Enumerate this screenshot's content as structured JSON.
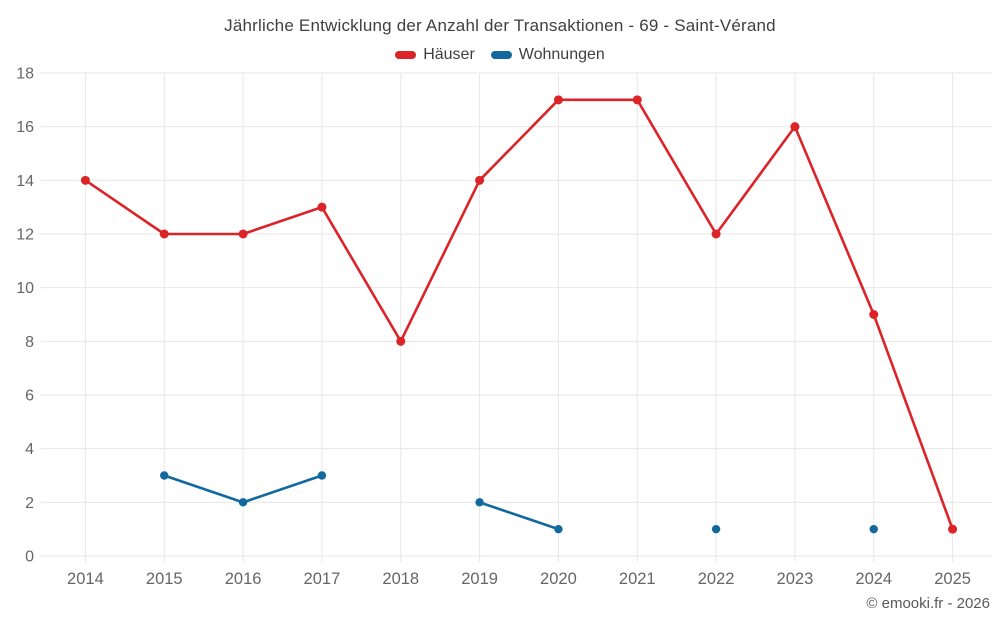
{
  "chart_data": {
    "type": "line",
    "title": "Jährliche Entwicklung der Anzahl der Transaktionen - 69 - Saint-Vérand",
    "categories": [
      "2014",
      "2015",
      "2016",
      "2017",
      "2018",
      "2019",
      "2020",
      "2021",
      "2022",
      "2023",
      "2024",
      "2025"
    ],
    "series": [
      {
        "name": "Häuser",
        "color": "#dc2328",
        "values": [
          14,
          12,
          12,
          13,
          8,
          14,
          17,
          17,
          12,
          16,
          9,
          1
        ]
      },
      {
        "name": "Wohnungen",
        "color": "#11699f",
        "values": [
          null,
          3,
          2,
          3,
          null,
          2,
          1,
          null,
          1,
          null,
          1,
          null
        ]
      }
    ],
    "xlabel": "",
    "ylabel": "",
    "ylim": [
      0,
      18
    ],
    "ytick_step": 2,
    "grid": true,
    "legend_position": "top"
  },
  "footer": "© emooki.fr - 2026",
  "colors": {
    "grid": "#e7e7e7",
    "tick_text": "#666666",
    "title_text": "#3f3f3f",
    "footer_text": "#59595b",
    "background": "#ffffff"
  }
}
